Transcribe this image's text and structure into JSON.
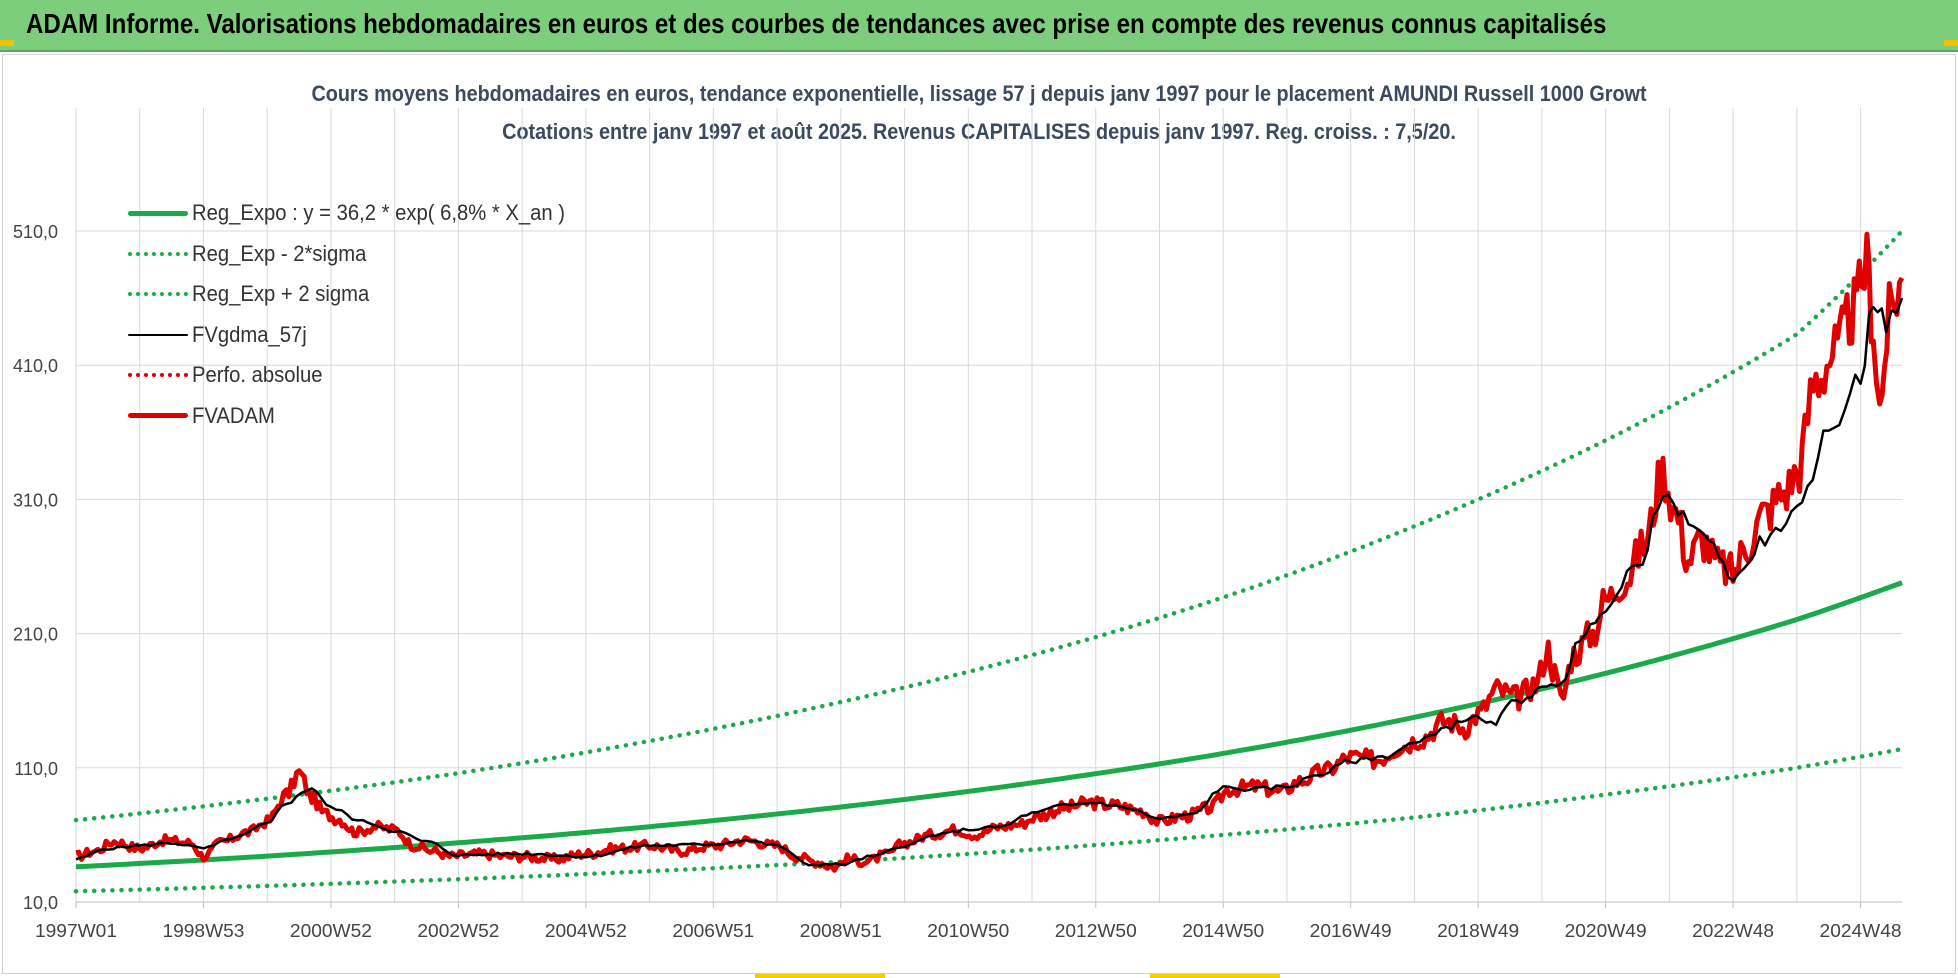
{
  "banner": {
    "title": "ADAM Informe. Valorisations hebdomadaires en euros et des courbes de tendances avec prise en compte des revenus connus capitalisés"
  },
  "colors": {
    "banner_bg": "#7ccd7c",
    "reg_expo": "#1aaa4a",
    "sigma_bands": "#1aaa4a",
    "fvgdma": "#000000",
    "perfo": "#e00000",
    "fvadam": "#e00000",
    "grid": "#d9d9d9"
  },
  "chart_data": {
    "type": "line",
    "title": "Cours moyens hebdomadaires en euros, tendance exponentielle, lissage 57 j depuis janv 1997 pour le placement AMUNDI Russell 1000 Growt",
    "subtitle": "Cotations entre janv 1997 et août 2025. Revenus CAPITALISES depuis janv 1997. Reg. croiss. : 7,5/20.",
    "xlabel": "",
    "ylabel": "",
    "ylim": [
      10,
      510
    ],
    "xlim": [
      1997.0,
      2025.65
    ],
    "grid": true,
    "legend_position": "top-left",
    "y_ticks": [
      "10,0",
      "110,0",
      "210,0",
      "310,0",
      "410,0",
      "510,0"
    ],
    "x_ticks": [
      {
        "label": "1997W01",
        "x": 1997.0
      },
      {
        "label": "1998W53",
        "x": 1999.0
      },
      {
        "label": "2000W52",
        "x": 2001.0
      },
      {
        "label": "2002W52",
        "x": 2003.0
      },
      {
        "label": "2004W52",
        "x": 2005.0
      },
      {
        "label": "2006W51",
        "x": 2007.0
      },
      {
        "label": "2008W51",
        "x": 2009.0
      },
      {
        "label": "2010W50",
        "x": 2011.0
      },
      {
        "label": "2012W50",
        "x": 2013.0
      },
      {
        "label": "2014W50",
        "x": 2015.0
      },
      {
        "label": "2016W49",
        "x": 2017.0
      },
      {
        "label": "2018W49",
        "x": 2019.0
      },
      {
        "label": "2020W49",
        "x": 2021.0
      },
      {
        "label": "2022W48",
        "x": 2023.0
      },
      {
        "label": "2024W48",
        "x": 2025.0
      }
    ],
    "series": [
      {
        "name": "Reg_Expo : y = 36,2 * exp( 6,8% *  X_an )",
        "style": "solid-thick",
        "color": "#1aaa4a",
        "x": [
          1997.0,
          2000.0,
          2003.0,
          2006.0,
          2009.0,
          2012.0,
          2015.0,
          2018.0,
          2021.0,
          2024.0,
          2025.65
        ],
        "y": [
          36.2,
          44.2,
          54.1,
          66.1,
          80.8,
          98.8,
          120.7,
          147.6,
          180.4,
          220.5,
          248
        ]
      },
      {
        "name": "Reg_Exp - 2*sigma",
        "style": "dotted",
        "color": "#1aaa4a",
        "x": [
          1997.0,
          2000.0,
          2003.0,
          2006.0,
          2009.0,
          2012.0,
          2015.0,
          2018.0,
          2021.0,
          2024.0,
          2025.65
        ],
        "y": [
          18,
          22,
          27,
          33,
          40,
          49,
          60,
          73,
          90,
          110,
          124
        ]
      },
      {
        "name": "Reg_Exp + 2 sigma",
        "style": "dotted",
        "color": "#1aaa4a",
        "x": [
          1997.0,
          2000.0,
          2003.0,
          2006.0,
          2009.0,
          2012.0,
          2015.0,
          2018.0,
          2021.0,
          2024.0,
          2025.65
        ],
        "y": [
          71,
          87,
          106,
          130,
          159,
          194,
          237,
          290,
          354,
          433,
          510
        ]
      },
      {
        "name": "FVgdma_57j",
        "style": "solid",
        "color": "#000000",
        "x": [
          1997.0,
          1997.5,
          1998.0,
          1998.5,
          1999.0,
          1999.5,
          2000.0,
          2000.3,
          2000.7,
          2001.0,
          2001.5,
          2002.0,
          2002.5,
          2003.0,
          2004.0,
          2005.0,
          2006.0,
          2007.0,
          2007.5,
          2008.0,
          2008.5,
          2009.0,
          2009.5,
          2010.0,
          2010.5,
          2011.0,
          2011.5,
          2012.0,
          2012.5,
          2013.0,
          2013.5,
          2014.0,
          2014.5,
          2015.0,
          2015.5,
          2016.0,
          2016.5,
          2017.0,
          2017.5,
          2018.0,
          2018.5,
          2018.9,
          2019.2,
          2019.6,
          2020.0,
          2020.3,
          2020.6,
          2021.0,
          2021.5,
          2021.9,
          2022.3,
          2022.7,
          2023.0,
          2023.5,
          2024.0,
          2024.5,
          2025.0,
          2025.2,
          2025.4,
          2025.65
        ],
        "y": [
          42,
          50,
          52,
          54,
          50,
          58,
          68,
          84,
          95,
          80,
          70,
          63,
          55,
          45,
          46,
          44,
          52,
          53,
          56,
          52,
          38,
          38,
          44,
          52,
          60,
          64,
          66,
          76,
          82,
          84,
          80,
          72,
          75,
          95,
          94,
          96,
          105,
          115,
          118,
          128,
          140,
          148,
          142,
          160,
          168,
          174,
          205,
          230,
          260,
          310,
          295,
          275,
          250,
          280,
          300,
          360,
          400,
          460,
          440,
          460
        ]
      },
      {
        "name": "Perfo. absolue",
        "style": "dotted",
        "color": "#e00000",
        "x": [],
        "y": []
      },
      {
        "name": "FVADAM",
        "style": "solid-thick",
        "color": "#e00000",
        "x": [
          1997.0,
          1997.3,
          1997.6,
          1998.0,
          1998.4,
          1998.8,
          1999.0,
          1999.3,
          1999.7,
          2000.0,
          2000.3,
          2000.5,
          2000.7,
          2000.9,
          2001.1,
          2001.4,
          2001.7,
          2002.0,
          2002.3,
          2002.6,
          2002.9,
          2003.1,
          2003.4,
          2003.7,
          2004.0,
          2004.5,
          2005.0,
          2005.5,
          2006.0,
          2006.5,
          2007.0,
          2007.5,
          2008.0,
          2008.3,
          2008.6,
          2008.9,
          2009.1,
          2009.4,
          2009.7,
          2010.0,
          2010.4,
          2010.8,
          2011.1,
          2011.5,
          2011.8,
          2012.1,
          2012.5,
          2012.9,
          2013.3,
          2013.7,
          2014.0,
          2014.4,
          2014.8,
          2015.1,
          2015.5,
          2015.9,
          2016.2,
          2016.6,
          2017.0,
          2017.4,
          2017.8,
          2018.1,
          2018.5,
          2018.8,
          2019.0,
          2019.3,
          2019.6,
          2019.9,
          2020.1,
          2020.2,
          2020.3,
          2020.5,
          2020.8,
          2021.0,
          2021.3,
          2021.6,
          2021.9,
          2022.1,
          2022.3,
          2022.5,
          2022.8,
          2023.0,
          2023.2,
          2023.5,
          2023.8,
          2024.0,
          2024.3,
          2024.6,
          2024.9,
          2025.1,
          2025.2,
          2025.3,
          2025.45,
          2025.65
        ],
        "y": [
          44,
          48,
          55,
          50,
          56,
          54,
          44,
          55,
          62,
          70,
          90,
          106,
          88,
          76,
          72,
          62,
          66,
          64,
          52,
          48,
          44,
          45,
          46,
          44,
          44,
          42,
          46,
          50,
          52,
          48,
          52,
          56,
          52,
          44,
          40,
          36,
          42,
          40,
          45,
          54,
          60,
          64,
          60,
          66,
          68,
          74,
          80,
          84,
          82,
          78,
          70,
          74,
          80,
          94,
          96,
          92,
          100,
          108,
          118,
          116,
          126,
          132,
          145,
          140,
          150,
          168,
          162,
          172,
          198,
          180,
          160,
          195,
          210,
          235,
          250,
          275,
          330,
          300,
          265,
          280,
          260,
          255,
          275,
          300,
          315,
          330,
          400,
          420,
          450,
          485,
          440,
          378,
          445,
          475
        ]
      }
    ]
  }
}
